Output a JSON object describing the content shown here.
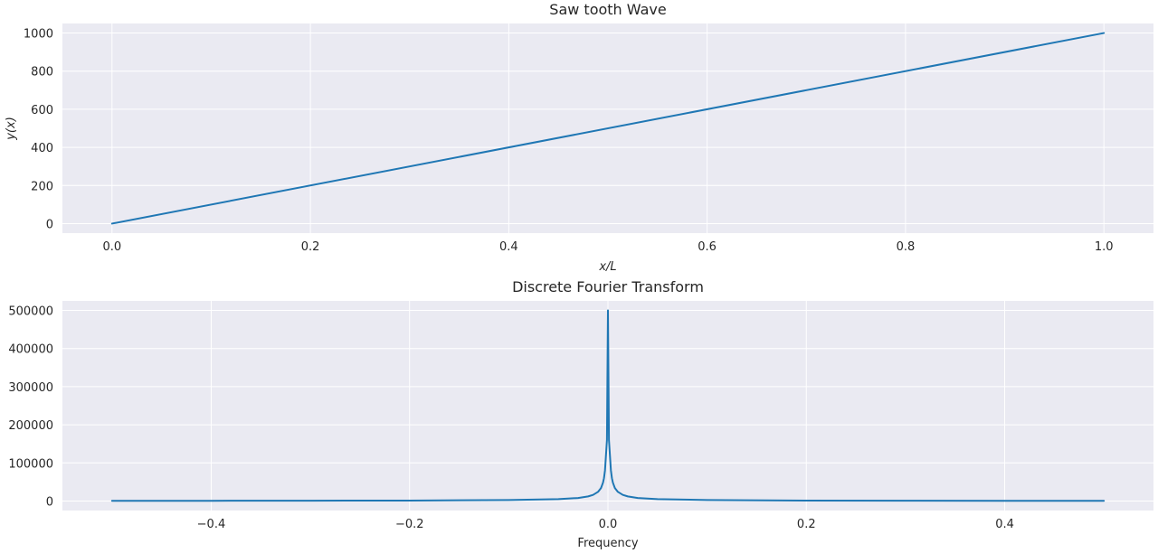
{
  "chart_data": [
    {
      "type": "line",
      "title": "Saw tooth Wave",
      "xlabel": "x/L",
      "ylabel": "y(x)",
      "xlim": [
        -0.05,
        1.05
      ],
      "ylim": [
        -50,
        1050
      ],
      "xticks": [
        0.0,
        0.2,
        0.4,
        0.6,
        0.8,
        1.0
      ],
      "xtick_labels": [
        "0.0",
        "0.2",
        "0.4",
        "0.6",
        "0.8",
        "1.0"
      ],
      "yticks": [
        0,
        200,
        400,
        600,
        800,
        1000
      ],
      "ytick_labels": [
        "0",
        "200",
        "400",
        "600",
        "800",
        "1000"
      ],
      "grid": true,
      "series": [
        {
          "x": [
            0.0,
            1.0
          ],
          "y": [
            0,
            1000
          ],
          "color": "#1f77b4"
        }
      ]
    },
    {
      "type": "line",
      "title": "Discrete Fourier Transform",
      "xlabel": "Frequency",
      "ylabel": "",
      "xlim": [
        -0.55,
        0.55
      ],
      "ylim": [
        -25000,
        525000
      ],
      "xticks": [
        -0.4,
        -0.2,
        0.0,
        0.2,
        0.4
      ],
      "xtick_labels": [
        "−0.4",
        "−0.2",
        "0.0",
        "0.2",
        "0.4"
      ],
      "yticks": [
        0,
        100000,
        200000,
        300000,
        400000,
        500000
      ],
      "ytick_labels": [
        "0",
        "100000",
        "200000",
        "300000",
        "400000",
        "500000"
      ],
      "grid": true,
      "series": [
        {
          "color": "#1f77b4",
          "x": [
            -0.5,
            -0.4,
            -0.3,
            -0.2,
            -0.1,
            -0.05,
            -0.03,
            -0.02,
            -0.015,
            -0.01,
            -0.007,
            -0.005,
            -0.004,
            -0.003,
            -0.002,
            -0.001,
            0.0,
            0.001,
            0.002,
            0.003,
            0.004,
            0.005,
            0.007,
            0.01,
            0.015,
            0.02,
            0.03,
            0.05,
            0.1,
            0.2,
            0.3,
            0.4,
            0.5
          ],
          "y": [
            500,
            600,
            800,
            1200,
            2500,
            5000,
            8000,
            12000,
            16000,
            24000,
            34000,
            48000,
            60000,
            80000,
            120000,
            160000,
            500000,
            160000,
            120000,
            80000,
            60000,
            48000,
            34000,
            24000,
            16000,
            12000,
            8000,
            5000,
            2500,
            1200,
            800,
            600,
            500
          ]
        }
      ]
    }
  ]
}
